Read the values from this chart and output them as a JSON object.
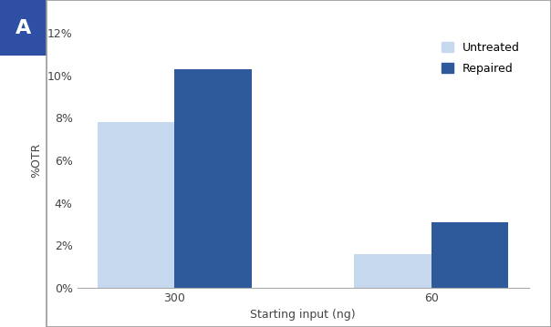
{
  "categories": [
    "300",
    "60"
  ],
  "untreated_values": [
    0.078,
    0.016
  ],
  "repaired_values": [
    0.103,
    0.031
  ],
  "untreated_color": "#c5d8ed",
  "repaired_color": "#2e5a9c",
  "xlabel": "Starting input (ng)",
  "ylabel": "%OTR",
  "ylim": [
    0,
    0.12
  ],
  "yticks": [
    0.0,
    0.02,
    0.04,
    0.06,
    0.08,
    0.1,
    0.12
  ],
  "ytick_labels": [
    "0%",
    "2%",
    "4%",
    "6%",
    "8%",
    "10%",
    "12%"
  ],
  "legend_labels": [
    "Untreated",
    "Repaired"
  ],
  "bar_width": 0.3,
  "panel_label": "A",
  "panel_label_bg": "#2e4fa3",
  "panel_label_color": "#ffffff",
  "background_color": "#ffffff",
  "label_fontsize": 9,
  "tick_fontsize": 9,
  "legend_fontsize": 9,
  "spine_color": "#aaaaaa",
  "frame_color": "#999999"
}
